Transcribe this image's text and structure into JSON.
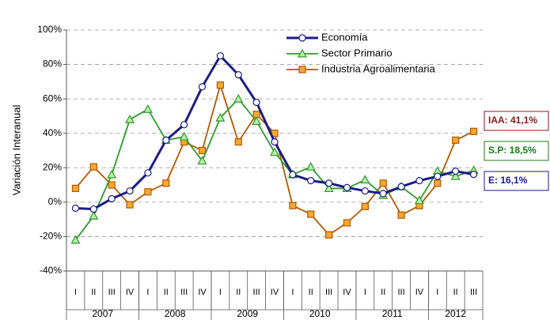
{
  "chart_data": {
    "type": "line",
    "ylabel": "Variación Interanual",
    "categories": [
      "I",
      "II",
      "III",
      "IV",
      "I",
      "II",
      "III",
      "IV",
      "I",
      "II",
      "III",
      "IV",
      "I",
      "II",
      "III",
      "IV",
      "I",
      "II",
      "III",
      "IV",
      "I",
      "II",
      "III"
    ],
    "groups": [
      {
        "label": "2007",
        "count": 4
      },
      {
        "label": "2008",
        "count": 4
      },
      {
        "label": "2009",
        "count": 4
      },
      {
        "label": "2010",
        "count": 4
      },
      {
        "label": "2011",
        "count": 4
      },
      {
        "label": "2012",
        "count": 3
      }
    ],
    "series": [
      {
        "name": "Economía",
        "color": "#1c1c86",
        "marker": "circle",
        "marker_fill": "#ffffff",
        "values": [
          -3.5,
          -4,
          2,
          6.5,
          17,
          36,
          45,
          67,
          85,
          74,
          58,
          35,
          16,
          12.5,
          11,
          8.5,
          6.5,
          5,
          9,
          12.5,
          15,
          18,
          16.1
        ]
      },
      {
        "name": "Sector Primario",
        "color": "#2e9a2e",
        "marker": "triangle",
        "marker_fill": "#b8f0a8",
        "values": [
          -22,
          -8,
          16,
          48,
          54,
          36,
          38,
          24,
          49,
          60,
          47,
          29,
          16,
          20.5,
          8,
          8,
          13,
          4,
          9,
          1,
          18,
          15,
          18.5
        ]
      },
      {
        "name": "Industria Agroalimentaria",
        "color": "#b35900",
        "marker": "square",
        "marker_fill": "#f7a830",
        "values": [
          8,
          20.5,
          10,
          -1.5,
          6,
          11,
          35,
          30,
          68,
          35,
          51,
          40,
          -2,
          -7,
          -19,
          -12,
          -2.5,
          11,
          -7.5,
          -2,
          11,
          36,
          41.1
        ]
      }
    ],
    "annotations": [
      {
        "text": "IAA: 41,1%",
        "color": "#8b1a1a"
      },
      {
        "text": "S.P: 18,5%",
        "color": "#1a7a1a"
      },
      {
        "text": "E: 16,1%",
        "color": "#1a1a8b"
      }
    ],
    "ylim": [
      -40,
      100
    ],
    "yticks": [
      {
        "value": -40,
        "label": "-40%"
      },
      {
        "value": -20,
        "label": "-20%"
      },
      {
        "value": 0,
        "label": "0%"
      },
      {
        "value": 20,
        "label": "20%"
      },
      {
        "value": 40,
        "label": "40%"
      },
      {
        "value": 60,
        "label": "60%"
      },
      {
        "value": 80,
        "label": "80%"
      },
      {
        "value": 100,
        "label": "100%"
      }
    ],
    "grid": true,
    "legend": "top"
  }
}
